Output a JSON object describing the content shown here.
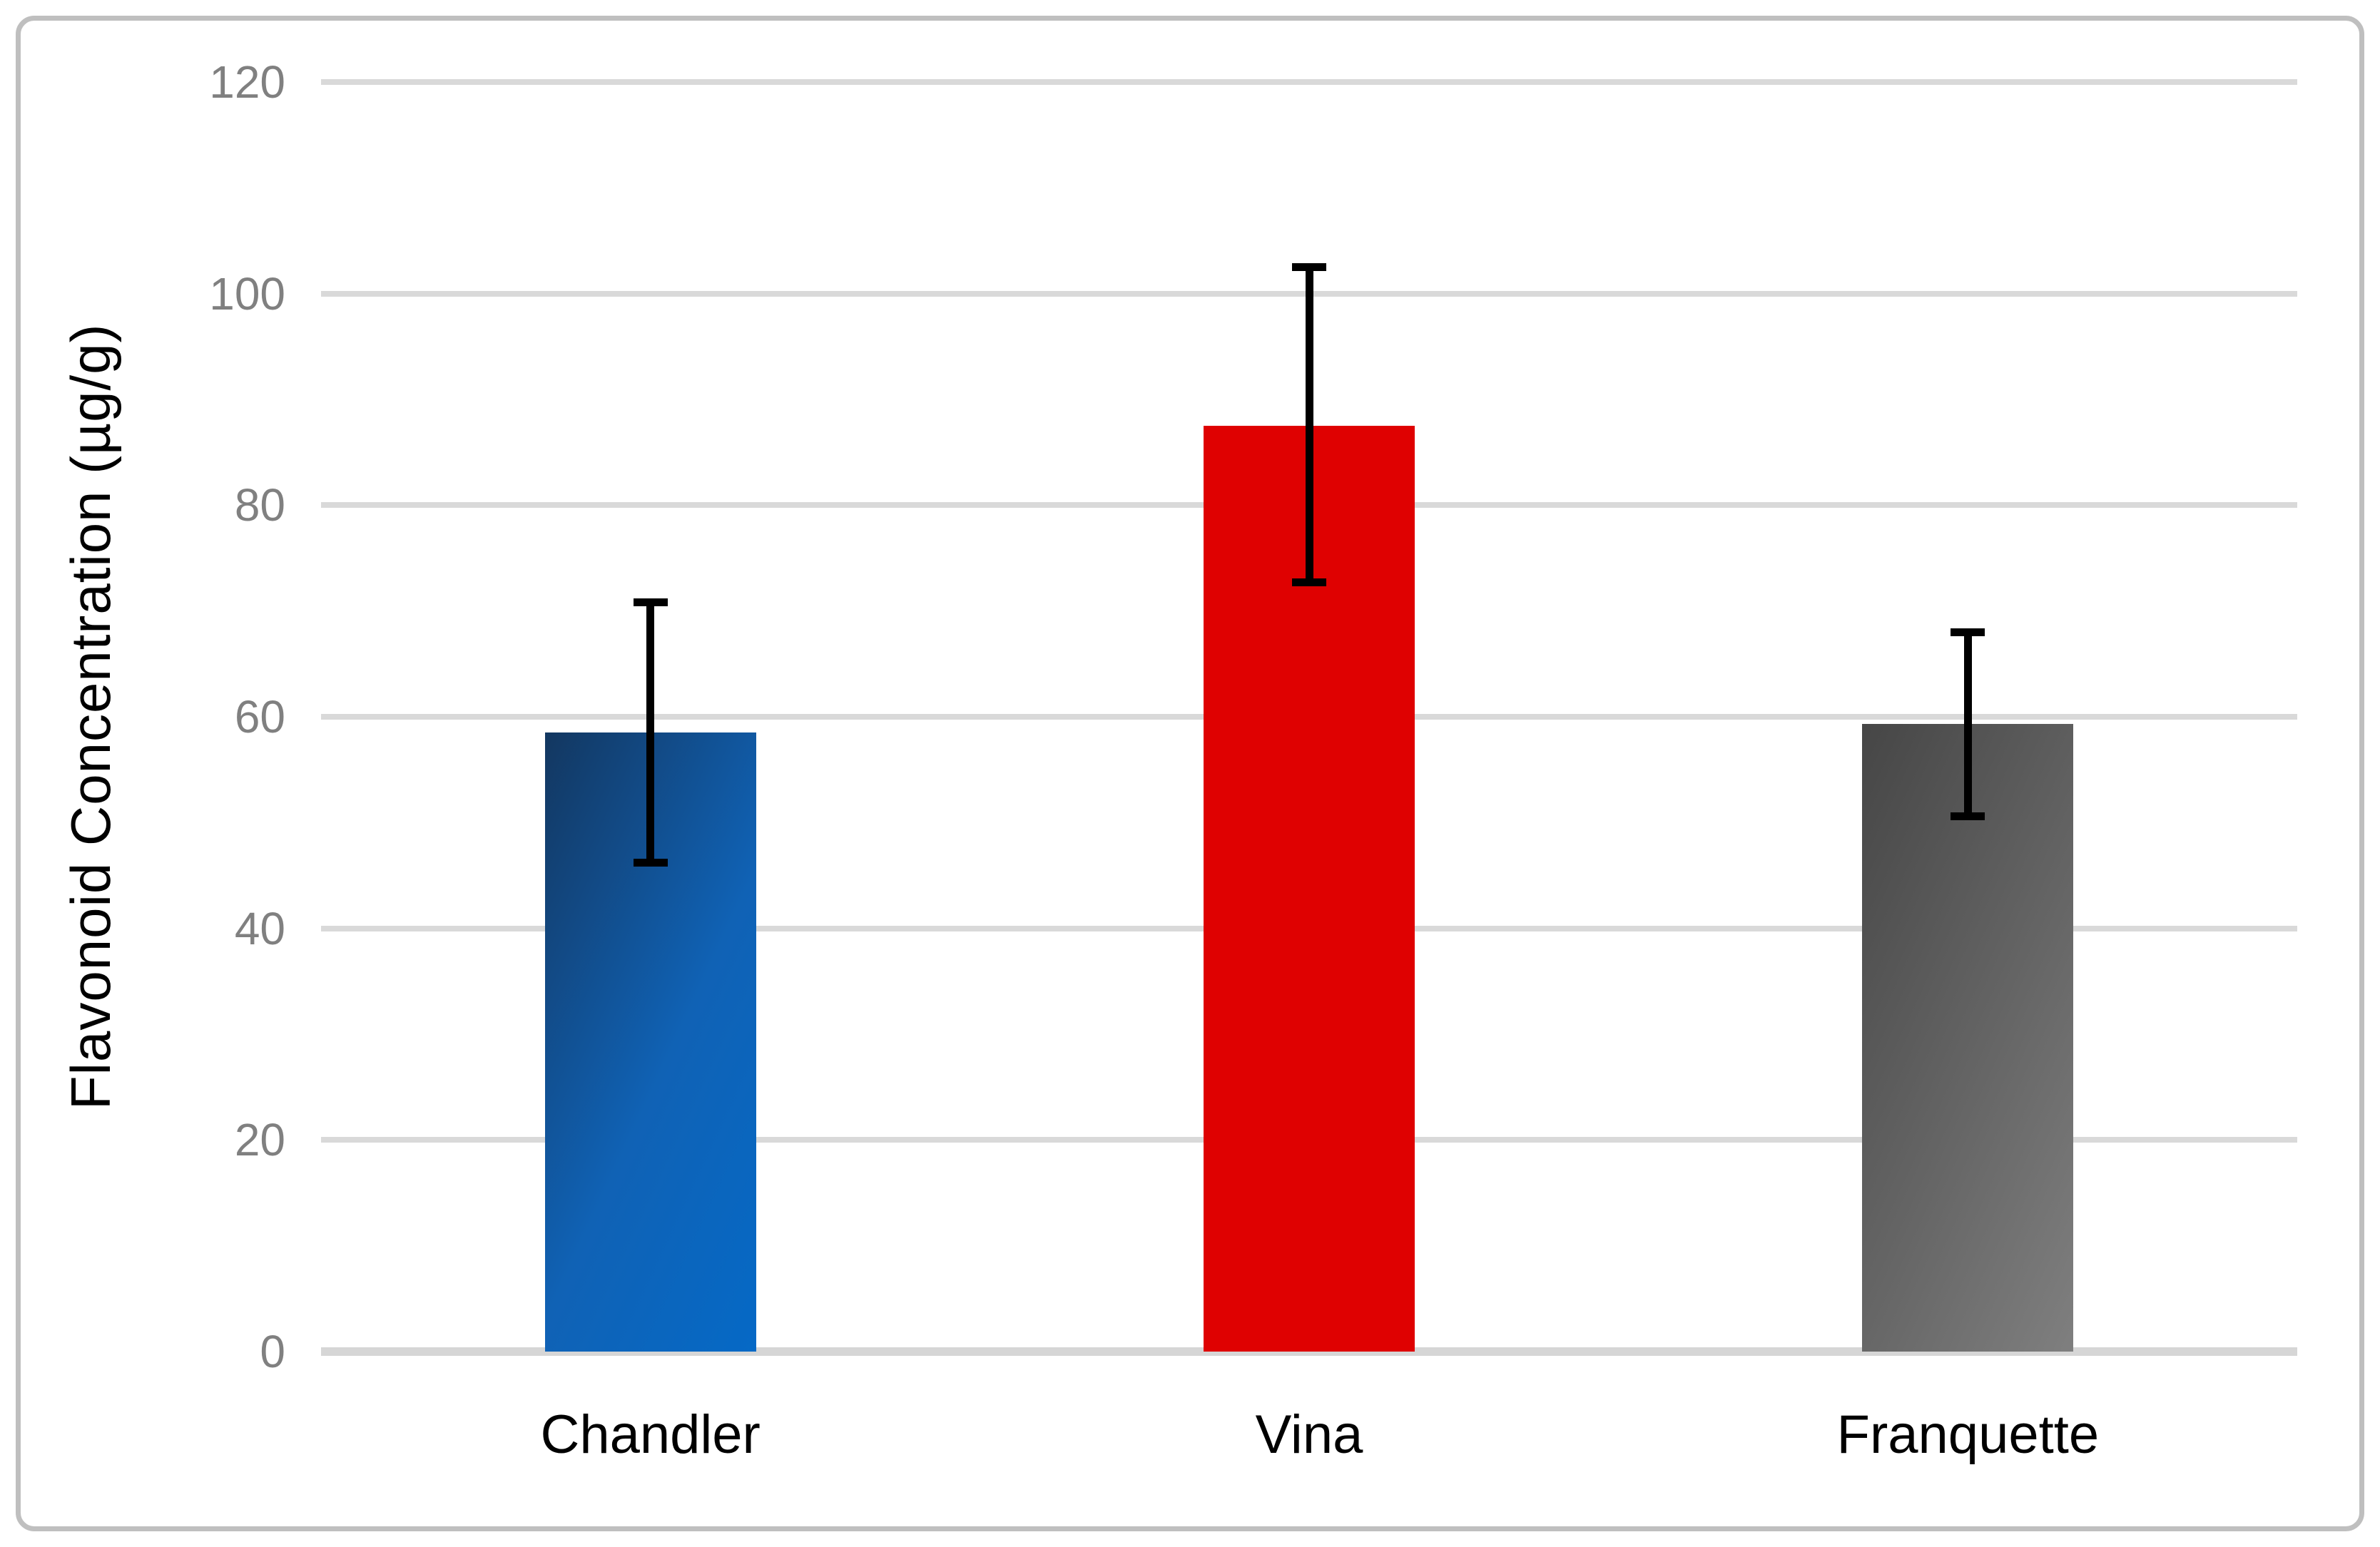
{
  "figure": {
    "y_axis_title": "Flavonoid Concentration (µg/g)",
    "colors": {
      "background": "#ffffff",
      "frame_border": "#bfbfbf",
      "gridline": "#d9d9d9",
      "axis_line": "#d6d6d6",
      "tick_label": "#808080",
      "category_label": "#000000",
      "error_bar": "#000000"
    }
  },
  "chart_data": {
    "type": "bar",
    "title": "",
    "xlabel": "",
    "ylabel": "Flavonoid Concentration (µg/g)",
    "categories": [
      "Chandler",
      "Vina",
      "Franquette"
    ],
    "values": [
      58.5,
      87.5,
      59.3
    ],
    "error_high": [
      70.8,
      102.5,
      68.0
    ],
    "error_low": [
      46.2,
      72.7,
      50.6
    ],
    "ylim": [
      0,
      120
    ],
    "yticks": [
      0,
      20,
      40,
      60,
      80,
      100,
      120
    ],
    "grid": true,
    "legend": false,
    "bar_styles": [
      {
        "name": "Chandler",
        "fill": "gradient",
        "stops": [
          "#133760",
          "#1062b5",
          "#0569c6"
        ]
      },
      {
        "name": "Vina",
        "fill": "solid",
        "stops": [
          "#df0101",
          "#df0101",
          "#df0101"
        ]
      },
      {
        "name": "Franquette",
        "fill": "gradient",
        "stops": [
          "#464646",
          "#656565",
          "#7f7f7f"
        ]
      }
    ]
  }
}
